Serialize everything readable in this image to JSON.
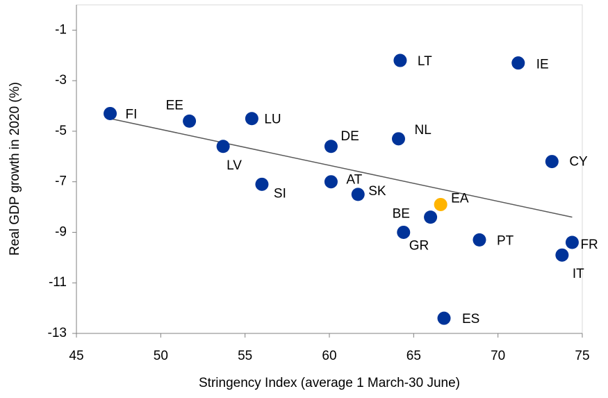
{
  "chart_data": {
    "type": "scatter",
    "x_label": "Stringency Index (average 1 March-30 June)",
    "y_label": "Real GDP growth in 2020 (%)",
    "labels": [
      "FI",
      "EE",
      "LU",
      "LV",
      "SI",
      "DE",
      "AT",
      "SK",
      "LT",
      "NL",
      "BE",
      "GR",
      "EA",
      "IE",
      "CY",
      "PT",
      "FR",
      "IT",
      "ES"
    ],
    "x": [
      47.0,
      51.7,
      55.4,
      53.7,
      56.0,
      60.1,
      60.1,
      61.7,
      64.2,
      64.1,
      66.0,
      64.4,
      66.6,
      71.2,
      73.2,
      68.9,
      74.4,
      73.8,
      66.8
    ],
    "y": [
      -4.3,
      -4.6,
      -4.5,
      -5.6,
      -7.1,
      -5.6,
      -7.0,
      -7.5,
      -2.2,
      -5.3,
      -8.4,
      -9.0,
      -7.9,
      -2.3,
      -6.2,
      -9.3,
      -9.4,
      -9.9,
      -12.4
    ],
    "point_colors": [
      "#003399",
      "#003399",
      "#003399",
      "#003399",
      "#003399",
      "#003399",
      "#003399",
      "#003399",
      "#003399",
      "#003399",
      "#003399",
      "#003399",
      "#ffb400",
      "#003399",
      "#003399",
      "#003399",
      "#003399",
      "#003399",
      "#003399"
    ],
    "trendline": {
      "x": [
        47.0,
        74.4
      ],
      "y": [
        -4.5,
        -8.4
      ],
      "color": "#595959"
    },
    "xlim": [
      45,
      75
    ],
    "xticks": [
      45,
      50,
      55,
      60,
      65,
      70,
      75
    ],
    "ylim": [
      -13,
      0
    ],
    "yticks": [
      -13,
      -11,
      -9,
      -7,
      -5,
      -3,
      -1
    ]
  }
}
